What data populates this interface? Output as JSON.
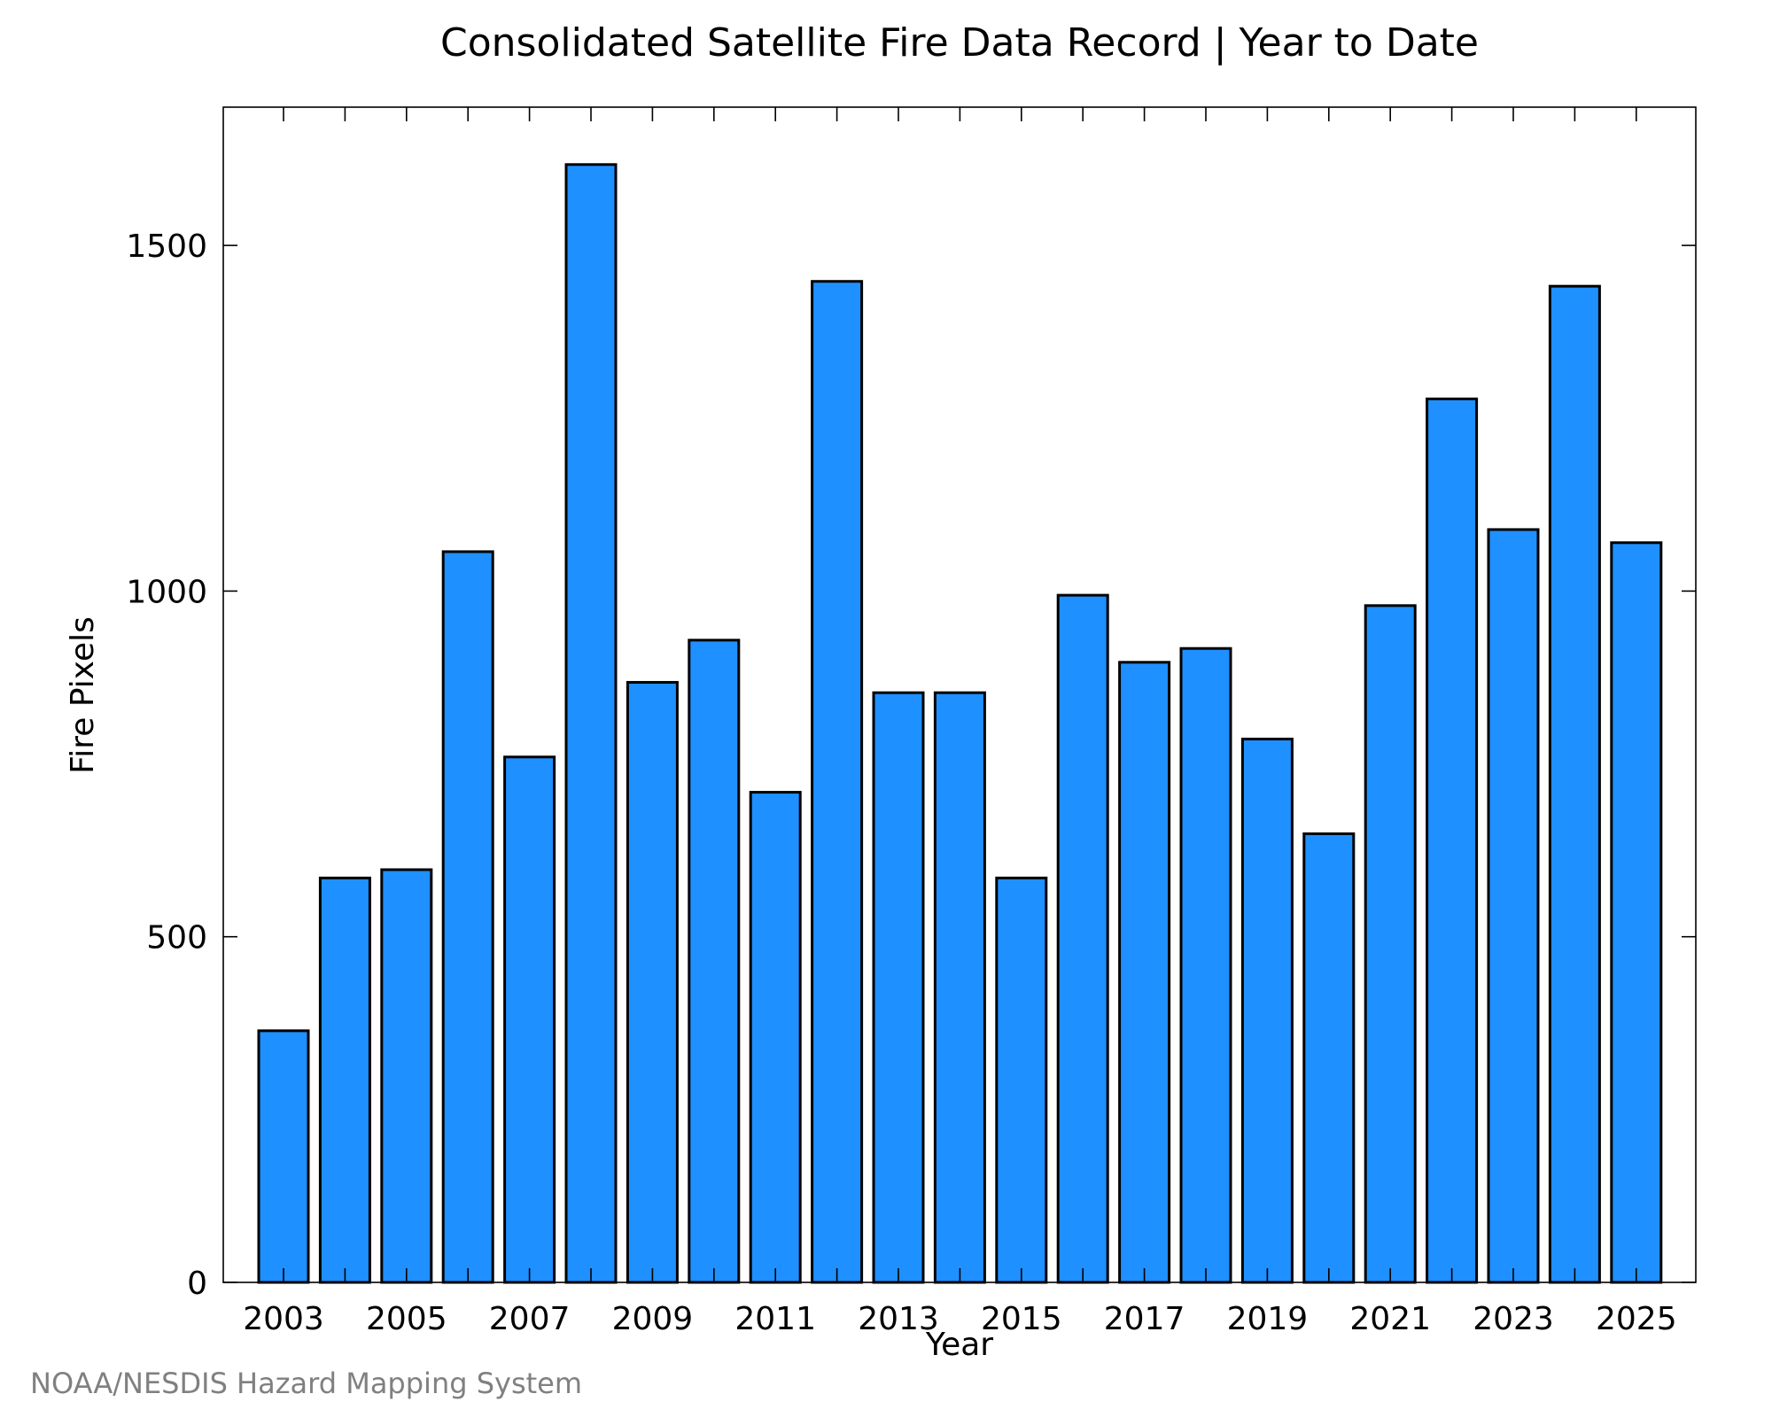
{
  "chart_data": {
    "type": "bar",
    "title": "Consolidated Satellite Fire Data Record | Year to Date",
    "xlabel": "Year",
    "ylabel": "Fire Pixels",
    "categories": [
      "2003",
      "2004",
      "2005",
      "2006",
      "2007",
      "2008",
      "2009",
      "2010",
      "2011",
      "2012",
      "2013",
      "2014",
      "2015",
      "2016",
      "2017",
      "2018",
      "2019",
      "2020",
      "2021",
      "2022",
      "2023",
      "2024",
      "2025"
    ],
    "values": [
      364,
      585,
      597,
      1057,
      760,
      1617,
      868,
      929,
      709,
      1448,
      853,
      853,
      585,
      994,
      897,
      917,
      786,
      649,
      979,
      1278,
      1089,
      1441,
      1070
    ],
    "x_tick_labels": [
      "2003",
      "2005",
      "2007",
      "2009",
      "2011",
      "2013",
      "2015",
      "2017",
      "2019",
      "2021",
      "2023",
      "2025"
    ],
    "y_tick_labels": [
      "0",
      "500",
      "1000",
      "1500"
    ],
    "y_ticks": [
      0,
      500,
      1000,
      1500
    ],
    "ylim": [
      0,
      1700
    ],
    "grid": false,
    "bar_color": "#1E90FF",
    "edge_color": "#000000"
  },
  "credit": "NOAA/NESDIS Hazard Mapping System"
}
